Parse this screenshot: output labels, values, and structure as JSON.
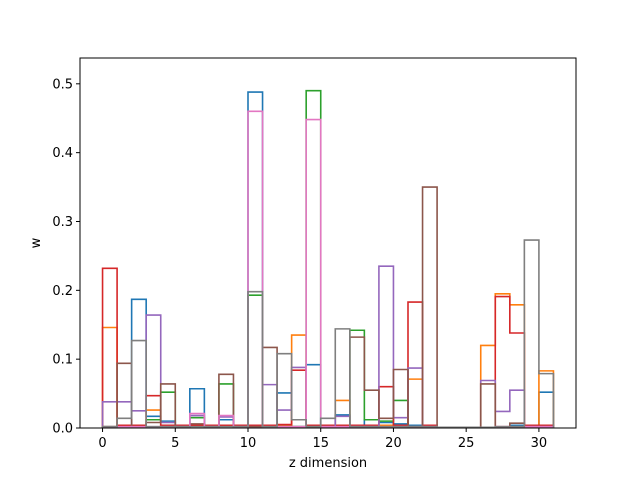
{
  "chart_data": {
    "type": "step-histogram",
    "xlabel": "z dimension",
    "ylabel": "w",
    "xlim": [
      -1.55,
      32.55
    ],
    "ylim": [
      0,
      0.5375
    ],
    "xticks": [
      0,
      5,
      10,
      15,
      20,
      25,
      30
    ],
    "yticks": [
      0.0,
      0.1,
      0.2,
      0.3,
      0.4,
      0.5
    ],
    "ytick_labels": [
      "0.0",
      "0.1",
      "0.2",
      "0.3",
      "0.4",
      "0.5"
    ],
    "grid": false,
    "bins": 31,
    "bin_range": [
      0,
      31
    ],
    "colors": [
      "#1f77b4",
      "#ff7f0e",
      "#2ca02c",
      "#d62728",
      "#9467bd",
      "#8c564b",
      "#e377c2",
      "#7f7f7f"
    ],
    "series": [
      {
        "values": [
          0.001,
          0.003,
          0.187,
          0.017,
          0.01,
          0.001,
          0.057,
          0.004,
          0.012,
          0.002,
          0.488,
          0.002,
          0.051,
          0.002,
          0.092,
          0.001,
          0.019,
          0.002,
          0.012,
          0.008,
          0.006,
          0.004,
          0.004,
          0.001,
          0.001,
          0.001,
          0.001,
          0.001,
          0.004,
          0.001,
          0.052
        ]
      },
      {
        "values": [
          0.146,
          0.003,
          0.003,
          0.026,
          0.004,
          0.002,
          0.003,
          0.003,
          0.003,
          0.002,
          0.003,
          0.003,
          0.003,
          0.135,
          0.004,
          0.004,
          0.04,
          0.004,
          0.004,
          0.004,
          0.004,
          0.071,
          0.001,
          0.001,
          0.001,
          0.001,
          0.12,
          0.195,
          0.179,
          0.002,
          0.083
        ]
      },
      {
        "values": [
          0.002,
          0.002,
          0.002,
          0.012,
          0.052,
          0.002,
          0.015,
          0.002,
          0.064,
          0.002,
          0.193,
          0.002,
          0.002,
          0.002,
          0.49,
          0.002,
          0.002,
          0.142,
          0.012,
          0.01,
          0.04,
          0.002,
          0.002,
          0.001,
          0.001,
          0.001,
          0.001,
          0.001,
          0.002,
          0.002,
          0.002
        ]
      },
      {
        "values": [
          0.232,
          0.004,
          0.004,
          0.047,
          0.004,
          0.004,
          0.004,
          0.004,
          0.004,
          0.004,
          0.004,
          0.004,
          0.005,
          0.084,
          0.004,
          0.004,
          0.004,
          0.004,
          0.004,
          0.06,
          0.004,
          0.183,
          0.004,
          0.001,
          0.001,
          0.001,
          0.001,
          0.191,
          0.138,
          0.004,
          0.004
        ]
      },
      {
        "values": [
          0.038,
          0.038,
          0.025,
          0.164,
          0.008,
          0.002,
          0.018,
          0.002,
          0.016,
          0.002,
          0.002,
          0.063,
          0.026,
          0.088,
          0.002,
          0.002,
          0.017,
          0.002,
          0.002,
          0.235,
          0.015,
          0.087,
          0.002,
          0.001,
          0.001,
          0.001,
          0.069,
          0.024,
          0.055,
          0.002,
          0.002
        ]
      },
      {
        "values": [
          0.002,
          0.094,
          0.002,
          0.008,
          0.064,
          0.002,
          0.006,
          0.002,
          0.078,
          0.002,
          0.002,
          0.117,
          0.002,
          0.002,
          0.002,
          0.002,
          0.002,
          0.132,
          0.055,
          0.014,
          0.085,
          0.002,
          0.35,
          0.001,
          0.001,
          0.001,
          0.064,
          0.002,
          0.007,
          0.002,
          0.002
        ]
      },
      {
        "values": [
          0.002,
          0.002,
          0.002,
          0.002,
          0.002,
          0.002,
          0.021,
          0.002,
          0.018,
          0.002,
          0.46,
          0.002,
          0.002,
          0.002,
          0.448,
          0.002,
          0.002,
          0.002,
          0.002,
          0.002,
          0.002,
          0.002,
          0.002,
          0.001,
          0.001,
          0.001,
          0.001,
          0.002,
          0.002,
          0.002,
          0.002
        ]
      },
      {
        "values": [
          0.002,
          0.014,
          0.127,
          0.002,
          0.002,
          0.002,
          0.002,
          0.002,
          0.002,
          0.002,
          0.198,
          0.002,
          0.108,
          0.012,
          0.002,
          0.014,
          0.144,
          0.002,
          0.002,
          0.002,
          0.002,
          0.002,
          0.002,
          0.001,
          0.001,
          0.001,
          0.001,
          0.002,
          0.002,
          0.273,
          0.079
        ]
      }
    ]
  }
}
